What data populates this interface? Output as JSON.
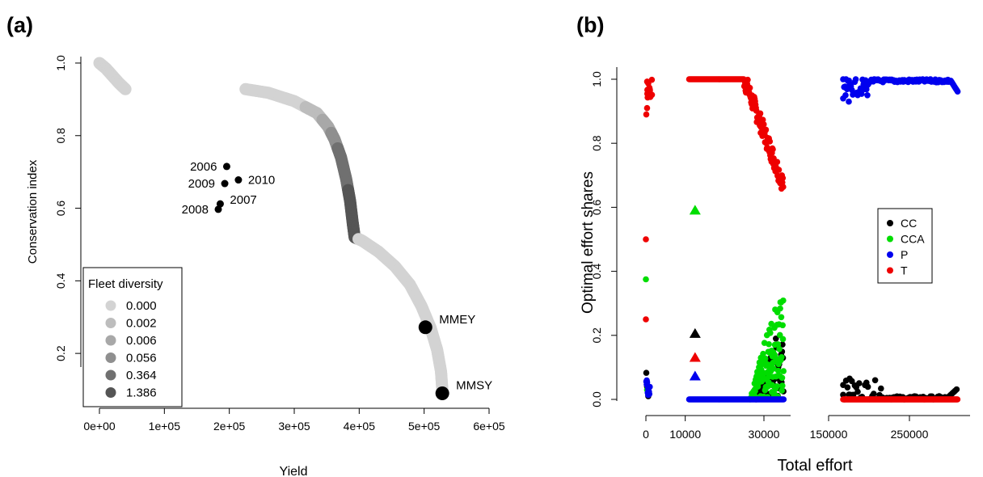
{
  "panels": {
    "a": {
      "label": "(a)"
    },
    "b": {
      "label": "(b)"
    }
  },
  "chart_data": [
    {
      "id": "a",
      "type": "scatter",
      "xlabel": "Yield",
      "ylabel": "Conservation index",
      "xlim": [
        0,
        600000
      ],
      "ylim": [
        0.08,
        1.02
      ],
      "xticks": [
        0,
        100000,
        200000,
        300000,
        400000,
        500000,
        600000
      ],
      "xtick_labels": [
        "0e+00",
        "1e+05",
        "2e+05",
        "3e+05",
        "4e+05",
        "5e+05",
        "6e+05"
      ],
      "yticks": [
        0.2,
        0.4,
        0.6,
        0.8,
        1.0
      ],
      "ytick_labels": [
        "0.2",
        "0.4",
        "0.6",
        "0.8",
        "1.0"
      ],
      "legend": {
        "title": "Fleet diversity",
        "position": "bottom-left",
        "entries": [
          "0.000",
          "0.002",
          "0.006",
          "0.056",
          "0.364",
          "1.386"
        ],
        "colors": [
          "#d3d3d3",
          "#bdbdbd",
          "#a8a8a8",
          "#8f8f8f",
          "#707070",
          "#555555"
        ]
      },
      "frontier": [
        {
          "x": 0,
          "y": 1.0,
          "d": 0
        },
        {
          "x": 10000,
          "y": 0.985,
          "d": 0
        },
        {
          "x": 20000,
          "y": 0.965,
          "d": 0
        },
        {
          "x": 30000,
          "y": 0.945,
          "d": 0
        },
        {
          "x": 40000,
          "y": 0.928,
          "d": 0
        },
        {
          "x": 225000,
          "y": 0.928,
          "d": 0
        },
        {
          "x": 260000,
          "y": 0.918,
          "d": 0
        },
        {
          "x": 300000,
          "y": 0.895,
          "d": 0
        },
        {
          "x": 335000,
          "y": 0.862,
          "d": 1
        },
        {
          "x": 352000,
          "y": 0.825,
          "d": 2
        },
        {
          "x": 362000,
          "y": 0.79,
          "d": 3
        },
        {
          "x": 372000,
          "y": 0.74,
          "d": 4
        },
        {
          "x": 380000,
          "y": 0.68,
          "d": 4
        },
        {
          "x": 386000,
          "y": 0.62,
          "d": 5
        },
        {
          "x": 390000,
          "y": 0.56,
          "d": 5
        },
        {
          "x": 393000,
          "y": 0.52,
          "d": 5
        },
        {
          "x": 405000,
          "y": 0.51,
          "d": 0
        },
        {
          "x": 430000,
          "y": 0.48,
          "d": 0
        },
        {
          "x": 455000,
          "y": 0.44,
          "d": 0
        },
        {
          "x": 478000,
          "y": 0.39,
          "d": 0
        },
        {
          "x": 496000,
          "y": 0.33,
          "d": 0
        },
        {
          "x": 510000,
          "y": 0.27,
          "d": 0
        },
        {
          "x": 520000,
          "y": 0.21,
          "d": 0
        },
        {
          "x": 526000,
          "y": 0.15,
          "d": 0
        },
        {
          "x": 528000,
          "y": 0.1,
          "d": 0
        }
      ],
      "observed": [
        {
          "label": "2006",
          "x": 196000,
          "y": 0.715
        },
        {
          "label": "2009",
          "x": 193000,
          "y": 0.668
        },
        {
          "label": "2010",
          "x": 214000,
          "y": 0.678
        },
        {
          "label": "2008",
          "x": 183000,
          "y": 0.597
        },
        {
          "label": "2007",
          "x": 186000,
          "y": 0.612
        }
      ],
      "points": [
        {
          "label": "MMEY",
          "x": 502000,
          "y": 0.272
        },
        {
          "label": "MMSY",
          "x": 528000,
          "y": 0.09
        }
      ]
    },
    {
      "id": "b",
      "type": "scatter",
      "xlabel": "Total effort",
      "ylabel": "Optimal effort shares",
      "ylim": [
        -0.05,
        1.05
      ],
      "yticks": [
        0.0,
        0.2,
        0.4,
        0.6,
        0.8,
        1.0
      ],
      "ytick_labels": [
        "0.0",
        "0.2",
        "0.4",
        "0.6",
        "0.8",
        "1.0"
      ],
      "broken_x_axis": true,
      "segments": [
        {
          "xlim": [
            -1000,
            40000
          ],
          "ticks": [
            0,
            10000,
            30000
          ],
          "tick_labels": [
            "0",
            "10000",
            "30000"
          ]
        },
        {
          "xlim": [
            130000,
            310000
          ],
          "ticks": [
            150000,
            250000
          ],
          "tick_labels": [
            "150000",
            "250000"
          ]
        }
      ],
      "legend": {
        "position": "right",
        "entries": [
          "CC",
          "CCA",
          "P",
          "T"
        ],
        "colors": [
          "#000000",
          "#00dd00",
          "#0000ee",
          "#ee0000"
        ]
      },
      "series": [
        {
          "name": "CC",
          "color": "#000000"
        },
        {
          "name": "CCA",
          "color": "#00dd00"
        },
        {
          "name": "P",
          "color": "#0000ee"
        },
        {
          "name": "T",
          "color": "#ee0000"
        }
      ],
      "triangles": [
        {
          "series": "CCA",
          "x": 12500,
          "y": 0.59
        },
        {
          "series": "CC",
          "x": 12500,
          "y": 0.205
        },
        {
          "series": "T",
          "x": 12500,
          "y": 0.13
        },
        {
          "series": "P",
          "x": 12500,
          "y": 0.072
        }
      ]
    }
  ]
}
